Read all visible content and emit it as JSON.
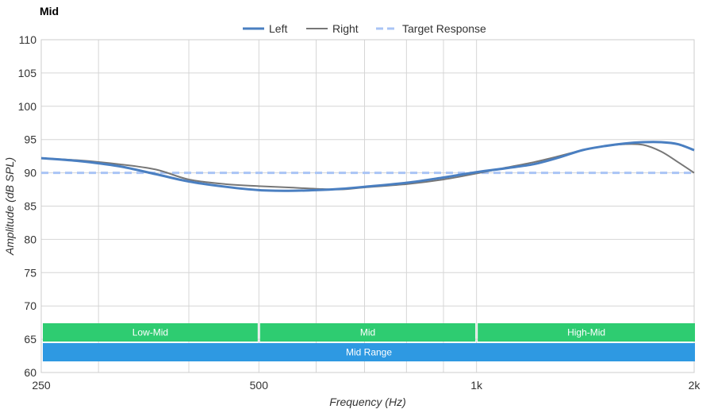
{
  "chart_data": {
    "type": "line",
    "title": "Mid",
    "xlabel": "Frequency (Hz)",
    "ylabel": "Amplitude (dB SPL)",
    "x_scale": "log",
    "xlim": [
      250,
      2000
    ],
    "ylim": [
      60,
      110
    ],
    "y_ticks": [
      60,
      65,
      70,
      75,
      80,
      85,
      90,
      95,
      100,
      105,
      110
    ],
    "x_tick_labels": [
      {
        "value": 250,
        "label": "250"
      },
      {
        "value": 500,
        "label": "500"
      },
      {
        "value": 1000,
        "label": "1k"
      },
      {
        "value": 2000,
        "label": "2k"
      }
    ],
    "x_gridlines": [
      250,
      300,
      400,
      500,
      600,
      700,
      800,
      900,
      1000,
      2000
    ],
    "grid": true,
    "legend_position": "top-center",
    "series": [
      {
        "name": "Left",
        "color": "#4a7fc1",
        "style": "solid-thick",
        "x": [
          250,
          280,
          320,
          360,
          400,
          450,
          500,
          550,
          600,
          650,
          700,
          800,
          900,
          1000,
          1100,
          1200,
          1300,
          1400,
          1500,
          1600,
          1700,
          1800,
          1900,
          2000
        ],
        "y": [
          92.2,
          91.8,
          91.0,
          89.8,
          88.7,
          87.9,
          87.4,
          87.3,
          87.4,
          87.6,
          87.9,
          88.5,
          89.3,
          90.1,
          90.7,
          91.3,
          92.3,
          93.4,
          94.0,
          94.4,
          94.6,
          94.6,
          94.3,
          93.4
        ]
      },
      {
        "name": "Right",
        "color": "#777777",
        "style": "solid-thin",
        "x": [
          250,
          280,
          320,
          360,
          400,
          450,
          500,
          550,
          600,
          650,
          700,
          800,
          900,
          1000,
          1100,
          1200,
          1300,
          1400,
          1500,
          1600,
          1700,
          1800,
          1900,
          2000
        ],
        "y": [
          92.2,
          91.9,
          91.3,
          90.5,
          89.0,
          88.3,
          88.0,
          87.8,
          87.6,
          87.5,
          87.8,
          88.3,
          89.0,
          89.9,
          90.8,
          91.6,
          92.5,
          93.4,
          94.0,
          94.3,
          94.2,
          93.2,
          91.6,
          90.0
        ]
      },
      {
        "name": "Target Response",
        "color": "#a9c4f5",
        "style": "dashed",
        "x": [
          250,
          2000
        ],
        "y": [
          90,
          90
        ]
      }
    ],
    "bands": [
      {
        "label": "Low-Mid",
        "from": 250,
        "to": 500,
        "row": 1,
        "color": "#2ecc71"
      },
      {
        "label": "Mid",
        "from": 500,
        "to": 1000,
        "row": 1,
        "color": "#2ecc71"
      },
      {
        "label": "High-Mid",
        "from": 1000,
        "to": 2000,
        "row": 1,
        "color": "#2ecc71"
      },
      {
        "label": "Mid Range",
        "from": 250,
        "to": 2000,
        "row": 2,
        "color": "#2e99e2"
      }
    ]
  }
}
